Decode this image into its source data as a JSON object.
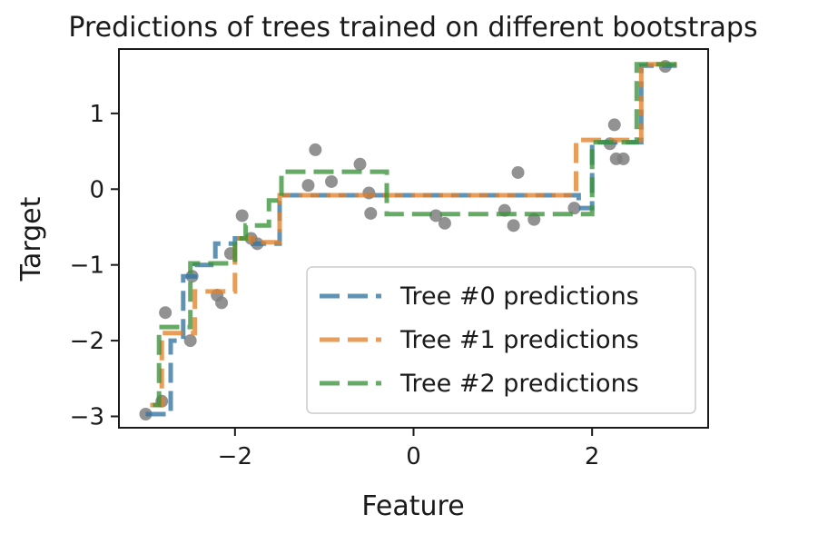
{
  "chart_data": {
    "type": "line",
    "title": "Predictions of trees trained on different bootstraps",
    "xlabel": "Feature",
    "ylabel": "Target",
    "xlim": [
      -3.3,
      3.3
    ],
    "ylim": [
      -3.15,
      1.85
    ],
    "xticks": [
      {
        "value": -2,
        "label": "−2"
      },
      {
        "value": 0,
        "label": "0"
      },
      {
        "value": 2,
        "label": "2"
      }
    ],
    "yticks": [
      {
        "value": -3,
        "label": "−3"
      },
      {
        "value": -2,
        "label": "−2"
      },
      {
        "value": -1,
        "label": "−1"
      },
      {
        "value": 0,
        "label": "0"
      },
      {
        "value": 1,
        "label": "1"
      }
    ],
    "grid": false,
    "legend_position": "lower-right",
    "scatter": {
      "color": "#7f7f7f",
      "points": [
        [
          -3.0,
          -2.97
        ],
        [
          -2.82,
          -2.8
        ],
        [
          -2.78,
          -1.63
        ],
        [
          -2.5,
          -2.0
        ],
        [
          -2.48,
          -1.15
        ],
        [
          -2.2,
          -1.4
        ],
        [
          -2.15,
          -1.5
        ],
        [
          -2.05,
          -0.85
        ],
        [
          -1.92,
          -0.35
        ],
        [
          -1.82,
          -0.65
        ],
        [
          -1.75,
          -0.72
        ],
        [
          -1.18,
          0.05
        ],
        [
          -1.1,
          0.52
        ],
        [
          -0.92,
          0.1
        ],
        [
          -0.6,
          0.33
        ],
        [
          -0.5,
          -0.05
        ],
        [
          -0.48,
          -0.32
        ],
        [
          0.25,
          -0.35
        ],
        [
          0.35,
          -0.45
        ],
        [
          1.02,
          -0.28
        ],
        [
          1.12,
          -0.48
        ],
        [
          1.17,
          0.22
        ],
        [
          1.35,
          -0.4
        ],
        [
          1.8,
          -0.25
        ],
        [
          2.2,
          0.6
        ],
        [
          2.25,
          0.85
        ],
        [
          2.27,
          0.4
        ],
        [
          2.35,
          0.4
        ],
        [
          2.82,
          1.62
        ]
      ]
    },
    "series": [
      {
        "name": "Tree #0 predictions",
        "color": "#3274a1",
        "x": [
          -3.0,
          -2.72,
          -2.72,
          -2.58,
          -2.58,
          -2.45,
          -2.45,
          -2.22,
          -2.22,
          -2.0,
          -2.0,
          -1.8,
          -1.8,
          -1.5,
          -1.5,
          1.85,
          1.85,
          2.0,
          2.0,
          2.55,
          2.55,
          2.95
        ],
        "y": [
          -2.97,
          -2.97,
          -2.0,
          -2.0,
          -1.15,
          -1.15,
          -1.0,
          -1.0,
          -0.72,
          -0.72,
          -0.65,
          -0.65,
          -0.72,
          -0.72,
          -0.08,
          -0.08,
          -0.25,
          -0.25,
          0.62,
          0.62,
          1.63,
          1.63
        ]
      },
      {
        "name": "Tree #1 predictions",
        "color": "#e1812c",
        "x": [
          -2.95,
          -2.82,
          -2.82,
          -2.45,
          -2.45,
          -2.0,
          -2.0,
          -1.8,
          -1.8,
          -1.5,
          -1.5,
          1.82,
          1.82,
          2.55,
          2.55,
          2.95
        ],
        "y": [
          -2.85,
          -2.85,
          -1.9,
          -1.9,
          -1.35,
          -1.35,
          -0.65,
          -0.65,
          -0.7,
          -0.7,
          -0.08,
          -0.08,
          0.65,
          0.65,
          1.65,
          1.65
        ]
      },
      {
        "name": "Tree #2 predictions",
        "color": "#3a923a",
        "x": [
          -2.92,
          -2.85,
          -2.85,
          -2.5,
          -2.5,
          -2.0,
          -2.0,
          -1.88,
          -1.88,
          -1.62,
          -1.62,
          -1.48,
          -1.48,
          -0.3,
          -0.3,
          2.0,
          2.0,
          2.5,
          2.5,
          2.95
        ],
        "y": [
          -2.85,
          -2.85,
          -1.82,
          -1.82,
          -0.98,
          -0.98,
          -0.65,
          -0.65,
          -0.48,
          -0.48,
          -0.15,
          -0.15,
          0.23,
          0.23,
          -0.33,
          -0.33,
          0.62,
          0.62,
          1.65,
          1.65
        ]
      }
    ]
  }
}
